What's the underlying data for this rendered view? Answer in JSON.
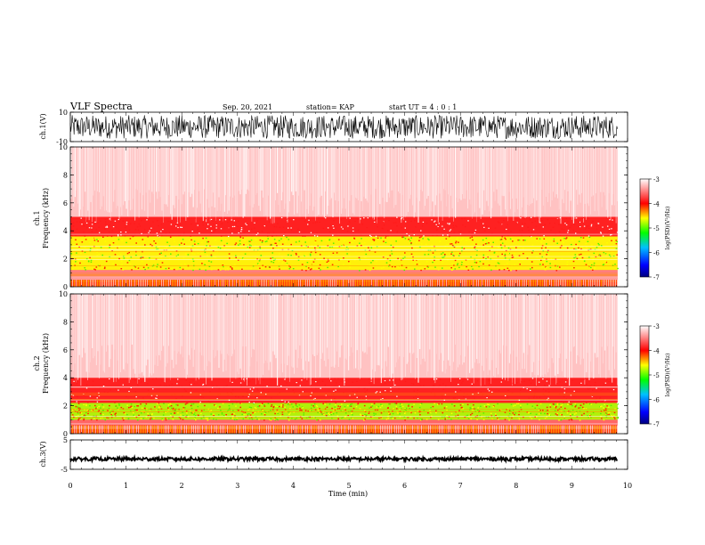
{
  "header": {
    "title": "VLF Spectra",
    "date": "Sep. 20, 2021",
    "station": "station= KAP",
    "start": "start  UT =  4 : 0  : 1"
  },
  "chart_data": [
    {
      "type": "line",
      "name": "ch1-waveform",
      "ylabel": "ch.1(V)",
      "ylim": [
        -10,
        10
      ],
      "y_ticks": [
        "10",
        "-10"
      ],
      "xlim": [
        0,
        10
      ],
      "x_extent_min": 9.82,
      "amplitude_range": [
        -8,
        8
      ]
    },
    {
      "type": "heatmap",
      "name": "ch1-spectrogram",
      "ylabel": "ch.1 Frequency (kHz)",
      "ylim": [
        0,
        10
      ],
      "y_ticks": [
        "0",
        "2",
        "4",
        "6",
        "8",
        "10"
      ],
      "xlim": [
        0,
        10
      ],
      "x_extent_min": 9.82,
      "bands": [
        {
          "from_khz": 0.0,
          "to_khz": 0.5,
          "level": "mixed"
        },
        {
          "from_khz": 0.5,
          "to_khz": 1.2,
          "level": -3.5
        },
        {
          "from_khz": 1.2,
          "to_khz": 3.6,
          "level": -4.6
        },
        {
          "from_khz": 3.6,
          "to_khz": 5.0,
          "level": -3.9
        },
        {
          "from_khz": 5.0,
          "to_khz": 10.0,
          "level": -3.2
        }
      ]
    },
    {
      "type": "heatmap",
      "name": "ch2-spectrogram",
      "ylabel": "ch.2 Frequency (kHz)",
      "ylim": [
        0,
        10
      ],
      "y_ticks": [
        "0",
        "2",
        "4",
        "6",
        "8",
        "10"
      ],
      "xlim": [
        0,
        10
      ],
      "x_extent_min": 9.82,
      "bands": [
        {
          "from_khz": 0.0,
          "to_khz": 0.6,
          "level": "mixed"
        },
        {
          "from_khz": 0.6,
          "to_khz": 1.0,
          "level": -3.6
        },
        {
          "from_khz": 1.0,
          "to_khz": 2.2,
          "level": -4.8
        },
        {
          "from_khz": 2.2,
          "to_khz": 4.0,
          "level": -3.9
        },
        {
          "from_khz": 4.0,
          "to_khz": 10.0,
          "level": -3.2
        }
      ]
    },
    {
      "type": "line",
      "name": "ch3-waveform",
      "ylabel": "ch.3(V)",
      "ylim": [
        -5,
        5
      ],
      "y_ticks": [
        "5",
        "-5"
      ],
      "xlim": [
        0,
        10
      ],
      "x_extent_min": 9.82,
      "amplitude_range": [
        -0.6,
        0.6
      ],
      "offset": -1.5
    }
  ],
  "x_axis": {
    "label": "Time (min)",
    "ticks": [
      "0",
      "1",
      "2",
      "3",
      "4",
      "5",
      "6",
      "7",
      "8",
      "9",
      "10"
    ]
  },
  "colorbar": {
    "label": "log(PSD)(V²/Hz)",
    "range": [
      -7,
      -3
    ],
    "ticks": [
      "-3",
      "-4",
      "-5",
      "-6",
      "-7"
    ],
    "colors": [
      "#000080",
      "#0000ff",
      "#00c0ff",
      "#00ff00",
      "#ffff00",
      "#ff0000",
      "#ffffff"
    ]
  }
}
